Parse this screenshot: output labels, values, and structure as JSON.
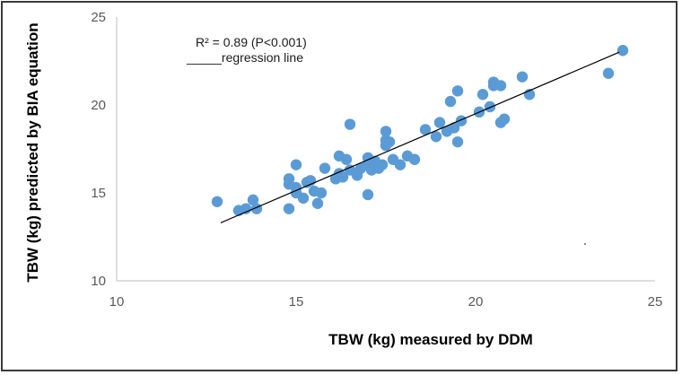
{
  "chart_data": {
    "type": "scatter",
    "title": "",
    "xlabel": "TBW (kg) measured by DDM",
    "ylabel": "TBW (kg) predicted by BIA equation",
    "xlim": [
      10,
      25
    ],
    "ylim": [
      10,
      25
    ],
    "x_ticks": [
      "10",
      "15",
      "20",
      "25"
    ],
    "y_ticks": [
      "10",
      "15",
      "20",
      "25"
    ],
    "grid": false,
    "legend": "none",
    "annotation_r2": "R² = 0.89 (P<0.001)",
    "annotation_line": "_____regression line",
    "point_color": "#5b9bd5",
    "line_color": "#000000",
    "regression_line": {
      "x": [
        12.9,
        24.0
      ],
      "y": [
        13.3,
        23.0
      ]
    },
    "points": [
      {
        "x": 12.8,
        "y": 14.5
      },
      {
        "x": 13.4,
        "y": 14.0
      },
      {
        "x": 13.6,
        "y": 14.1
      },
      {
        "x": 13.8,
        "y": 14.6
      },
      {
        "x": 13.9,
        "y": 14.1
      },
      {
        "x": 14.8,
        "y": 14.1
      },
      {
        "x": 14.8,
        "y": 15.5
      },
      {
        "x": 14.8,
        "y": 15.8
      },
      {
        "x": 15.0,
        "y": 16.6
      },
      {
        "x": 15.0,
        "y": 15.3
      },
      {
        "x": 15.0,
        "y": 15.0
      },
      {
        "x": 15.2,
        "y": 14.7
      },
      {
        "x": 15.3,
        "y": 15.6
      },
      {
        "x": 15.4,
        "y": 15.7
      },
      {
        "x": 15.5,
        "y": 15.1
      },
      {
        "x": 15.6,
        "y": 14.4
      },
      {
        "x": 15.7,
        "y": 15.0
      },
      {
        "x": 15.8,
        "y": 16.4
      },
      {
        "x": 16.1,
        "y": 15.8
      },
      {
        "x": 16.2,
        "y": 16.1
      },
      {
        "x": 16.2,
        "y": 17.1
      },
      {
        "x": 16.3,
        "y": 15.9
      },
      {
        "x": 16.4,
        "y": 16.9
      },
      {
        "x": 16.5,
        "y": 18.9
      },
      {
        "x": 16.5,
        "y": 16.3
      },
      {
        "x": 16.7,
        "y": 16.0
      },
      {
        "x": 16.8,
        "y": 16.4
      },
      {
        "x": 17.0,
        "y": 17.0
      },
      {
        "x": 17.0,
        "y": 16.6
      },
      {
        "x": 17.0,
        "y": 14.9
      },
      {
        "x": 17.1,
        "y": 16.3
      },
      {
        "x": 17.2,
        "y": 16.8
      },
      {
        "x": 17.3,
        "y": 16.4
      },
      {
        "x": 17.4,
        "y": 16.6
      },
      {
        "x": 17.5,
        "y": 18.5
      },
      {
        "x": 17.5,
        "y": 18.0
      },
      {
        "x": 17.5,
        "y": 17.7
      },
      {
        "x": 17.6,
        "y": 17.9
      },
      {
        "x": 17.7,
        "y": 16.9
      },
      {
        "x": 17.9,
        "y": 16.6
      },
      {
        "x": 18.1,
        "y": 17.1
      },
      {
        "x": 18.3,
        "y": 16.9
      },
      {
        "x": 18.6,
        "y": 18.6
      },
      {
        "x": 18.9,
        "y": 18.2
      },
      {
        "x": 19.0,
        "y": 19.0
      },
      {
        "x": 19.2,
        "y": 18.5
      },
      {
        "x": 19.3,
        "y": 20.2
      },
      {
        "x": 19.4,
        "y": 18.7
      },
      {
        "x": 19.5,
        "y": 20.8
      },
      {
        "x": 19.5,
        "y": 17.9
      },
      {
        "x": 19.6,
        "y": 19.1
      },
      {
        "x": 20.1,
        "y": 19.6
      },
      {
        "x": 20.2,
        "y": 20.6
      },
      {
        "x": 20.4,
        "y": 19.9
      },
      {
        "x": 20.5,
        "y": 21.1
      },
      {
        "x": 20.5,
        "y": 21.3
      },
      {
        "x": 20.7,
        "y": 21.1
      },
      {
        "x": 20.7,
        "y": 19.0
      },
      {
        "x": 20.8,
        "y": 19.2
      },
      {
        "x": 21.3,
        "y": 21.6
      },
      {
        "x": 21.5,
        "y": 20.6
      },
      {
        "x": 23.7,
        "y": 21.8
      },
      {
        "x": 24.1,
        "y": 23.1
      }
    ]
  }
}
